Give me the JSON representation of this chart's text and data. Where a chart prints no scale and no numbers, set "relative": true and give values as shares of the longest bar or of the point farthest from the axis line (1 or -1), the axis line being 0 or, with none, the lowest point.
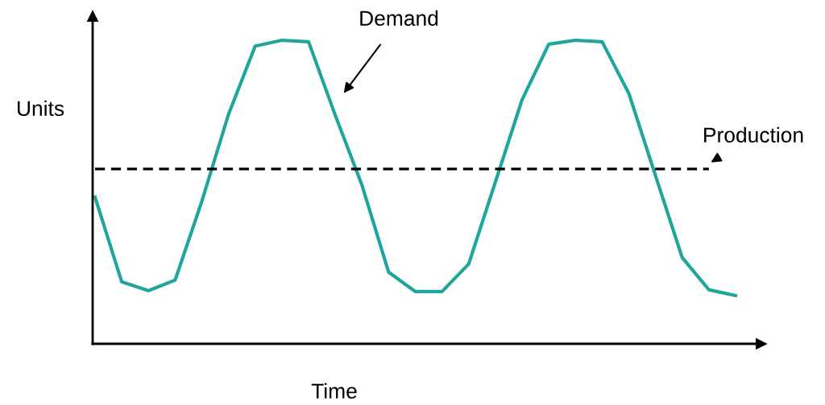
{
  "chart_data": {
    "type": "line",
    "relative": true,
    "xlabel": "Time",
    "ylabel": "Units",
    "categories": [
      null,
      null,
      null,
      null,
      null,
      null,
      null,
      null,
      null,
      null,
      null,
      null,
      null,
      null,
      null,
      null,
      null,
      null,
      null,
      null,
      null,
      null,
      null,
      null,
      null
    ],
    "series": [
      {
        "name": "Demand",
        "color": "#1fa59c",
        "line_style": "solid",
        "values": [
          0.483,
          0.204,
          0.175,
          0.21,
          0.469,
          0.756,
          0.981,
          1.0,
          0.995,
          0.753,
          0.523,
          0.236,
          0.172,
          0.172,
          0.263,
          0.533,
          0.804,
          0.987,
          1.0,
          0.995,
          0.825,
          0.554,
          0.284,
          0.178,
          0.159
        ]
      },
      {
        "name": "Production",
        "color": "#000000",
        "line_style": "dashed",
        "values": [
          0.576,
          0.576,
          0.576,
          0.576,
          0.576,
          0.576,
          0.576,
          0.576,
          0.576,
          0.576,
          0.576,
          0.576,
          0.576,
          0.576,
          0.576,
          0.576,
          0.576,
          0.576,
          0.576,
          0.576,
          0.576,
          0.576,
          0.576,
          0.576,
          null
        ]
      }
    ],
    "grid": false,
    "legend": false
  }
}
